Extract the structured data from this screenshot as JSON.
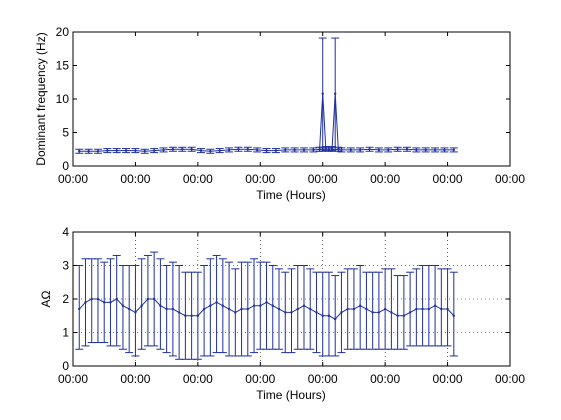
{
  "chart_data": [
    {
      "type": "line",
      "title": "",
      "xlabel": "Time (Hours)",
      "ylabel": "Dominant frequency (Hz)",
      "xticks": [
        "00:00",
        "00:00",
        "00:00",
        "00:00",
        "00:00",
        "00:00",
        "00:00",
        "00:00"
      ],
      "yticks": [
        0,
        5,
        10,
        15,
        20
      ],
      "ylim": [
        0,
        20
      ],
      "xlim": [
        0,
        7
      ],
      "grid": false,
      "series_color": "#1f2f9e",
      "series": [
        {
          "x": [
            0.1,
            0.25,
            0.4,
            0.55,
            0.7,
            0.85,
            1.0,
            1.15,
            1.3,
            1.45,
            1.6,
            1.75,
            1.9,
            2.05,
            2.2,
            2.35,
            2.5,
            2.65,
            2.8,
            2.95,
            3.1,
            3.25,
            3.4,
            3.55,
            3.7,
            3.85,
            4.0,
            4.15,
            4.3,
            4.45,
            4.6,
            4.75,
            4.9,
            5.05,
            5.2,
            5.35,
            5.5,
            5.65,
            5.8,
            5.95,
            6.1
          ],
          "y": [
            2.2,
            2.2,
            2.2,
            2.3,
            2.3,
            2.3,
            2.3,
            2.2,
            2.3,
            2.4,
            2.5,
            2.5,
            2.5,
            2.3,
            2.2,
            2.3,
            2.4,
            2.5,
            2.5,
            2.4,
            2.3,
            2.3,
            2.4,
            2.4,
            2.4,
            2.4,
            2.5,
            2.5,
            2.4,
            2.4,
            2.4,
            2.5,
            2.4,
            2.4,
            2.5,
            2.5,
            2.4,
            2.4,
            2.4,
            2.4,
            2.4
          ],
          "err": [
            0.3,
            0.3,
            0.3,
            0.3,
            0.3,
            0.3,
            0.3,
            0.3,
            0.3,
            0.3,
            0.3,
            0.3,
            0.3,
            0.3,
            0.3,
            0.3,
            0.3,
            0.3,
            0.3,
            0.3,
            0.3,
            0.3,
            0.3,
            0.3,
            0.3,
            0.3,
            0.3,
            0.3,
            0.3,
            0.3,
            0.3,
            0.3,
            0.3,
            0.3,
            0.3,
            0.3,
            0.3,
            0.3,
            0.3,
            0.3,
            0.3
          ]
        },
        {
          "x": [
            3.95,
            4.0,
            4.05,
            4.1,
            4.15,
            4.2,
            4.25
          ],
          "y": [
            2.5,
            10.8,
            2.6,
            2.5,
            2.6,
            10.8,
            2.5
          ],
          "err_low": [
            0.3,
            8.3,
            0.3,
            0.3,
            0.3,
            8.3,
            0.3
          ],
          "err_high": [
            0.3,
            8.3,
            0.3,
            0.3,
            0.3,
            8.3,
            0.3
          ]
        }
      ]
    },
    {
      "type": "line",
      "title": "",
      "xlabel": "Time (Hours)",
      "ylabel": "AΩ",
      "xticks": [
        "00:00",
        "00:00",
        "00:00",
        "00:00",
        "00:00",
        "00:00",
        "00:00",
        "00:00"
      ],
      "yticks": [
        0,
        1,
        2,
        3,
        4
      ],
      "ylim": [
        0,
        4
      ],
      "xlim": [
        0,
        7
      ],
      "grid": true,
      "series_color": "#1f2f9e",
      "series": [
        {
          "x": [
            0.1,
            0.2,
            0.3,
            0.4,
            0.5,
            0.6,
            0.7,
            0.8,
            0.9,
            1.0,
            1.1,
            1.2,
            1.3,
            1.4,
            1.5,
            1.6,
            1.7,
            1.8,
            1.9,
            2.0,
            2.1,
            2.2,
            2.3,
            2.4,
            2.5,
            2.6,
            2.7,
            2.8,
            2.9,
            3.0,
            3.1,
            3.2,
            3.3,
            3.4,
            3.5,
            3.6,
            3.7,
            3.8,
            3.9,
            4.0,
            4.1,
            4.2,
            4.3,
            4.4,
            4.5,
            4.6,
            4.7,
            4.8,
            4.9,
            5.0,
            5.1,
            5.2,
            5.3,
            5.4,
            5.5,
            5.6,
            5.7,
            5.8,
            5.9,
            6.0,
            6.1
          ],
          "y": [
            1.7,
            1.9,
            2.0,
            2.0,
            1.9,
            1.9,
            2.0,
            1.8,
            1.7,
            1.6,
            1.8,
            2.0,
            2.0,
            1.8,
            1.7,
            1.7,
            1.6,
            1.5,
            1.5,
            1.5,
            1.7,
            1.8,
            1.9,
            1.8,
            1.7,
            1.6,
            1.7,
            1.7,
            1.8,
            1.8,
            1.9,
            1.8,
            1.7,
            1.6,
            1.6,
            1.7,
            1.8,
            1.7,
            1.6,
            1.5,
            1.5,
            1.4,
            1.6,
            1.7,
            1.7,
            1.8,
            1.7,
            1.6,
            1.6,
            1.7,
            1.6,
            1.5,
            1.5,
            1.6,
            1.7,
            1.7,
            1.7,
            1.8,
            1.7,
            1.7,
            1.5
          ],
          "err_low": [
            1.2,
            1.3,
            1.3,
            1.3,
            1.2,
            1.3,
            1.4,
            1.3,
            1.3,
            1.3,
            1.3,
            1.4,
            1.4,
            1.3,
            1.3,
            1.4,
            1.4,
            1.3,
            1.3,
            1.3,
            1.4,
            1.5,
            1.5,
            1.4,
            1.4,
            1.3,
            1.4,
            1.4,
            1.4,
            1.3,
            1.4,
            1.3,
            1.2,
            1.2,
            1.2,
            1.2,
            1.3,
            1.2,
            1.2,
            1.2,
            1.2,
            1.1,
            1.2,
            1.2,
            1.2,
            1.3,
            1.2,
            1.1,
            1.1,
            1.2,
            1.1,
            1.0,
            1.0,
            1.0,
            1.1,
            1.1,
            1.1,
            1.2,
            1.1,
            1.1,
            1.2
          ],
          "err_high": [
            1.3,
            1.3,
            1.2,
            1.2,
            1.2,
            1.3,
            1.3,
            1.2,
            1.3,
            1.4,
            1.4,
            1.3,
            1.4,
            1.4,
            1.3,
            1.4,
            1.4,
            1.3,
            1.3,
            1.3,
            1.3,
            1.4,
            1.4,
            1.4,
            1.4,
            1.3,
            1.4,
            1.4,
            1.4,
            1.3,
            1.2,
            1.2,
            1.2,
            1.2,
            1.3,
            1.3,
            1.2,
            1.2,
            1.2,
            1.3,
            1.3,
            1.3,
            1.2,
            1.2,
            1.2,
            1.2,
            1.1,
            1.2,
            1.2,
            1.2,
            1.3,
            1.2,
            1.2,
            1.2,
            1.2,
            1.3,
            1.3,
            1.2,
            1.2,
            1.2,
            1.3
          ]
        }
      ]
    }
  ]
}
